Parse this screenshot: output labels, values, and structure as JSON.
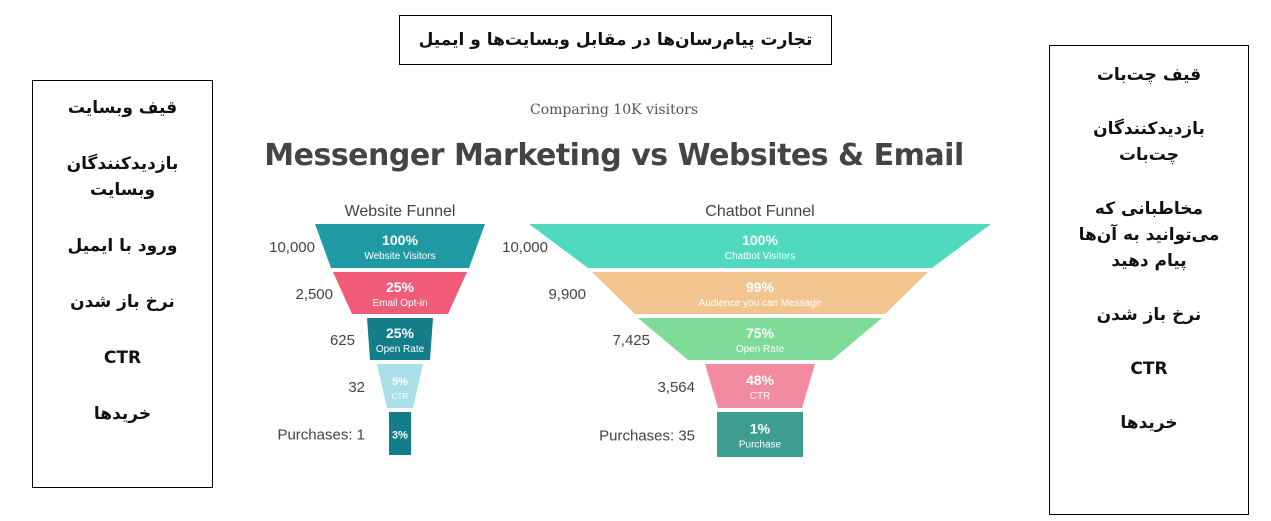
{
  "header": {
    "title": "تجارت پیام‌رسان‌ها در مقابل وبسایت‌ها و ایمیل"
  },
  "left_box": {
    "items": [
      [
        "قیف وبسایت"
      ],
      [
        "بازدیدکنندگان",
        "وبسایت"
      ],
      [
        "ورود با ایمیل"
      ],
      [
        "نرخ باز شدن"
      ],
      [
        "CTR"
      ],
      [
        "خریدها"
      ]
    ]
  },
  "right_box": {
    "items": [
      [
        "قیف چت‌بات"
      ],
      [
        "بازدیدکنندگان",
        "چت‌بات"
      ],
      [
        "مخاطبانی که",
        "می‌توانید به آن‌ها",
        "پیام دهید"
      ],
      [
        "نرخ باز شدن"
      ],
      [
        "CTR"
      ],
      [
        "خریدها"
      ]
    ]
  },
  "chart_data": {
    "type": "funnel",
    "subtitle": "Comparing 10K visitors",
    "title": "Messenger Marketing vs Websites & Email",
    "funnels": [
      {
        "name": "Website Funnel",
        "stages": [
          {
            "count": "10,000",
            "percent": "100%",
            "label": "Website Visitors",
            "color": "#1f9aa5"
          },
          {
            "count": "2,500",
            "percent": "25%",
            "label": "Email Opt-in",
            "color": "#ef5b78"
          },
          {
            "count": "625",
            "percent": "25%",
            "label": "Open Rate",
            "color": "#137e8a"
          },
          {
            "count": "32",
            "percent": "5%",
            "label": "CTR",
            "color": "#a9dfe6"
          },
          {
            "count": "Purchases: 1",
            "percent": "3%",
            "label": "",
            "color": "#137e8a"
          }
        ]
      },
      {
        "name": "Chatbot Funnel",
        "stages": [
          {
            "count": "10,000",
            "percent": "100%",
            "label": "Chatbot Visitors",
            "color": "#4fd9bf"
          },
          {
            "count": "9,900",
            "percent": "99%",
            "label": "Audience you can Message",
            "color": "#f2c590"
          },
          {
            "count": "7,425",
            "percent": "75%",
            "label": "Open Rate",
            "color": "#7fdc98"
          },
          {
            "count": "3,564",
            "percent": "48%",
            "label": "CTR",
            "color": "#f28aa0"
          },
          {
            "count": "Purchases: 35",
            "percent": "1%",
            "label": "Purchase",
            "color": "#3e9e91"
          }
        ]
      }
    ]
  }
}
